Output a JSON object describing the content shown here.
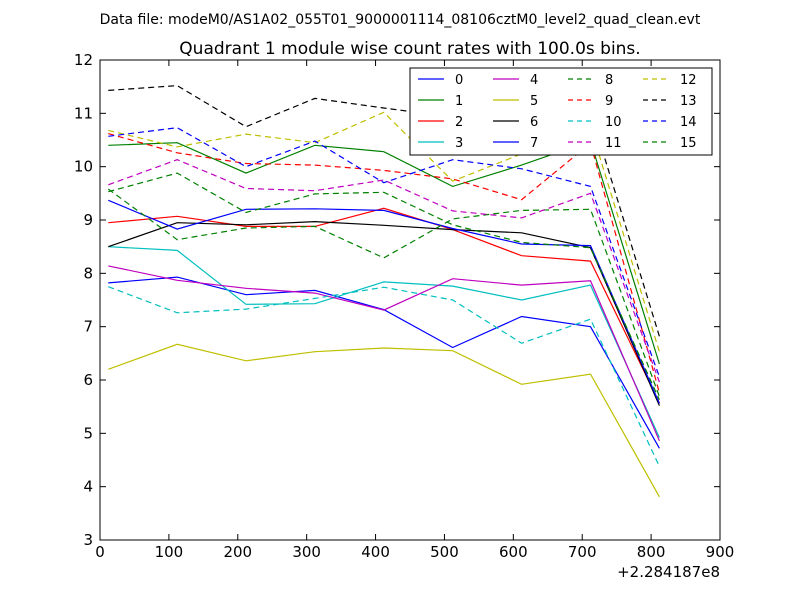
{
  "figure": {
    "suptitle": "Data file: modeM0/AS1A02_055T01_9000001114_08106cztM0_level2_quad_clean.evt"
  },
  "chart_data": {
    "type": "line",
    "title": "Quadrant 1 module wise count rates with 100.0s bins.",
    "xlabel": "",
    "ylabel": "",
    "x_offset_label": "+2.284187e8",
    "xlim": [
      0,
      900
    ],
    "ylim": [
      3,
      12
    ],
    "x_ticks": [
      0,
      100,
      200,
      300,
      400,
      500,
      600,
      700,
      800,
      900
    ],
    "y_ticks": [
      3,
      4,
      5,
      6,
      7,
      8,
      9,
      10,
      11,
      12
    ],
    "grid": false,
    "legend": {
      "position": "top-right",
      "columns": 4
    },
    "x": [
      12,
      112,
      212,
      312,
      412,
      512,
      612,
      712,
      812
    ],
    "series": [
      {
        "name": "0",
        "color": "#0000ff",
        "dash": "solid",
        "values": [
          7.82,
          7.93,
          7.6,
          7.68,
          7.32,
          6.61,
          7.19,
          7.0,
          4.72
        ]
      },
      {
        "name": "1",
        "color": "#008000",
        "dash": "solid",
        "values": [
          10.4,
          10.45,
          9.88,
          10.4,
          10.28,
          9.63,
          10.03,
          10.48,
          6.3
        ]
      },
      {
        "name": "2",
        "color": "#ff0000",
        "dash": "solid",
        "values": [
          8.95,
          9.07,
          8.88,
          8.88,
          9.22,
          8.82,
          8.33,
          8.23,
          5.57
        ]
      },
      {
        "name": "3",
        "color": "#00bfbf",
        "dash": "solid",
        "values": [
          8.5,
          8.43,
          7.42,
          7.43,
          7.84,
          7.76,
          7.5,
          7.78,
          4.92
        ]
      },
      {
        "name": "4",
        "color": "#bf00bf",
        "dash": "solid",
        "values": [
          8.14,
          7.87,
          7.72,
          7.63,
          7.31,
          7.9,
          7.78,
          7.86,
          4.86
        ]
      },
      {
        "name": "5",
        "color": "#bfbf00",
        "dash": "solid",
        "values": [
          6.2,
          6.67,
          6.36,
          6.53,
          6.6,
          6.55,
          5.92,
          6.11,
          3.81
        ]
      },
      {
        "name": "6",
        "color": "#000000",
        "dash": "solid",
        "values": [
          8.5,
          8.95,
          8.91,
          8.97,
          8.9,
          8.82,
          8.76,
          8.48,
          5.52
        ]
      },
      {
        "name": "7",
        "color": "#0000ff",
        "dash": "solid",
        "values": [
          9.37,
          8.83,
          9.2,
          9.21,
          9.18,
          8.84,
          8.55,
          8.52,
          5.56
        ]
      },
      {
        "name": "8",
        "color": "#008000",
        "dash": "dashed",
        "values": [
          9.58,
          8.63,
          8.85,
          8.88,
          8.29,
          9.02,
          9.18,
          9.2,
          5.69
        ]
      },
      {
        "name": "9",
        "color": "#ff0000",
        "dash": "dashed",
        "values": [
          10.62,
          10.26,
          10.06,
          10.03,
          9.93,
          9.77,
          9.38,
          10.44,
          5.76
        ]
      },
      {
        "name": "10",
        "color": "#00bfbf",
        "dash": "dashed",
        "values": [
          7.75,
          7.26,
          7.33,
          7.53,
          7.74,
          7.5,
          6.69,
          7.14,
          4.38
        ]
      },
      {
        "name": "11",
        "color": "#bf00bf",
        "dash": "dashed",
        "values": [
          9.66,
          10.13,
          9.59,
          9.55,
          9.75,
          9.17,
          9.04,
          9.5,
          5.96
        ]
      },
      {
        "name": "12",
        "color": "#bfbf00",
        "dash": "dashed",
        "values": [
          10.68,
          10.37,
          10.61,
          10.45,
          11.02,
          9.73,
          10.24,
          10.75,
          6.53
        ]
      },
      {
        "name": "13",
        "color": "#000000",
        "dash": "dashed",
        "values": [
          11.43,
          11.52,
          10.75,
          11.28,
          11.1,
          10.93,
          10.89,
          11.03,
          6.82
        ]
      },
      {
        "name": "14",
        "color": "#0000ff",
        "dash": "dashed",
        "values": [
          10.57,
          10.73,
          10.0,
          10.48,
          9.7,
          10.13,
          9.96,
          9.63,
          6.06
        ]
      },
      {
        "name": "15",
        "color": "#008000",
        "dash": "dashed",
        "values": [
          9.53,
          9.88,
          9.14,
          9.49,
          9.52,
          8.91,
          8.58,
          8.48,
          5.63
        ]
      }
    ]
  }
}
